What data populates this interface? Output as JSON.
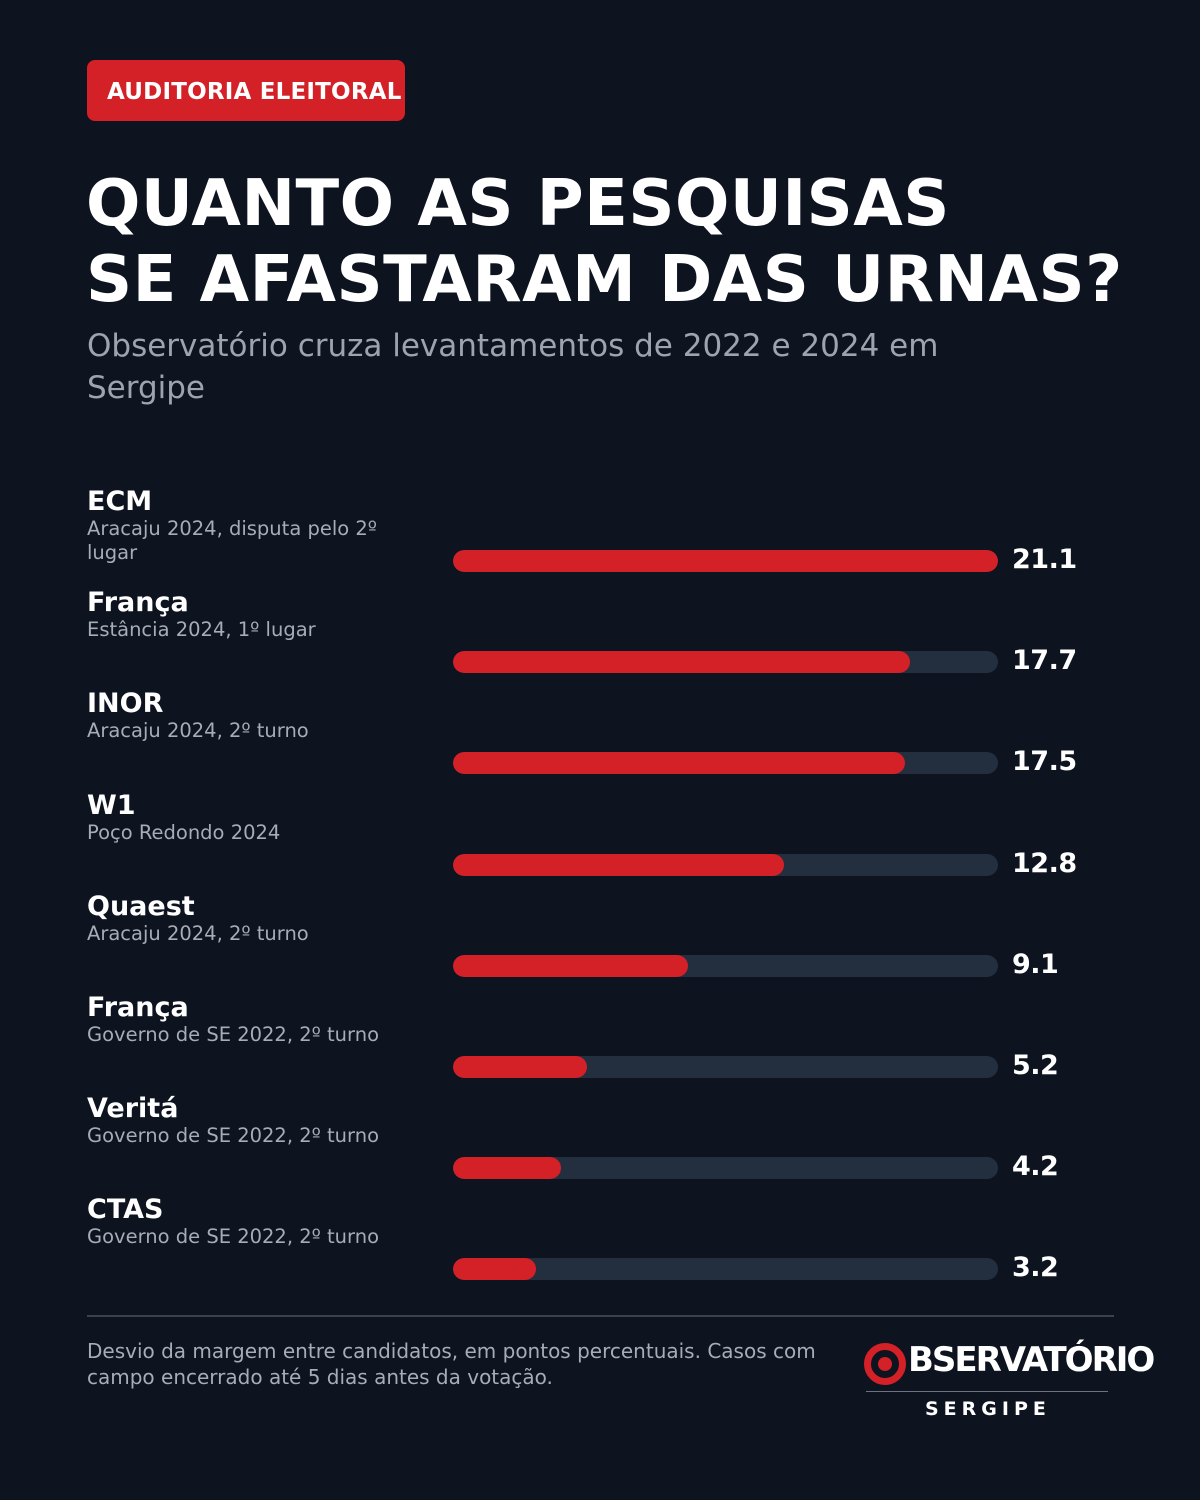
{
  "header": {
    "tag": "AUDITORIA ELEITORAL",
    "title_line1": "QUANTO AS PESQUISAS",
    "title_line2": "SE AFASTARAM DAS URNAS?",
    "subtitle": "Observatório cruza levantamentos de 2022 e 2024 em Sergipe"
  },
  "colors": {
    "background": "#0d131f",
    "accent": "#d42027",
    "track": "#232e3f",
    "muted_text": "#a7adb6"
  },
  "chart_data": {
    "type": "bar",
    "orientation": "horizontal",
    "xlim": [
      0,
      21.1
    ],
    "categories": [
      "ECM",
      "França",
      "INOR",
      "W1",
      "Quaest",
      "França",
      "Veritá",
      "CTAS"
    ],
    "descriptions": [
      "Aracaju 2024, disputa pelo 2º lugar",
      "Estância 2024, 1º lugar",
      "Aracaju 2024, 2º turno",
      "Poço Redondo 2024",
      "Aracaju 2024, 2º turno",
      "Governo de SE 2022, 2º turno",
      "Governo de SE 2022, 2º turno",
      "Governo de SE 2022, 2º turno"
    ],
    "values": [
      21.1,
      17.7,
      17.5,
      12.8,
      9.1,
      5.2,
      4.2,
      3.2
    ],
    "value_labels": [
      "21.1",
      "17.7",
      "17.5",
      "12.8",
      "9.1",
      "5.2",
      "4.2",
      "3.2"
    ]
  },
  "footer": {
    "note": "Desvio da margem entre candidatos, em pontos percentuais. Casos com campo encerrado até 5 dias antes da votação.",
    "logo_word": "BSERVATÓRIO",
    "logo_sub": "SERGIPE"
  }
}
